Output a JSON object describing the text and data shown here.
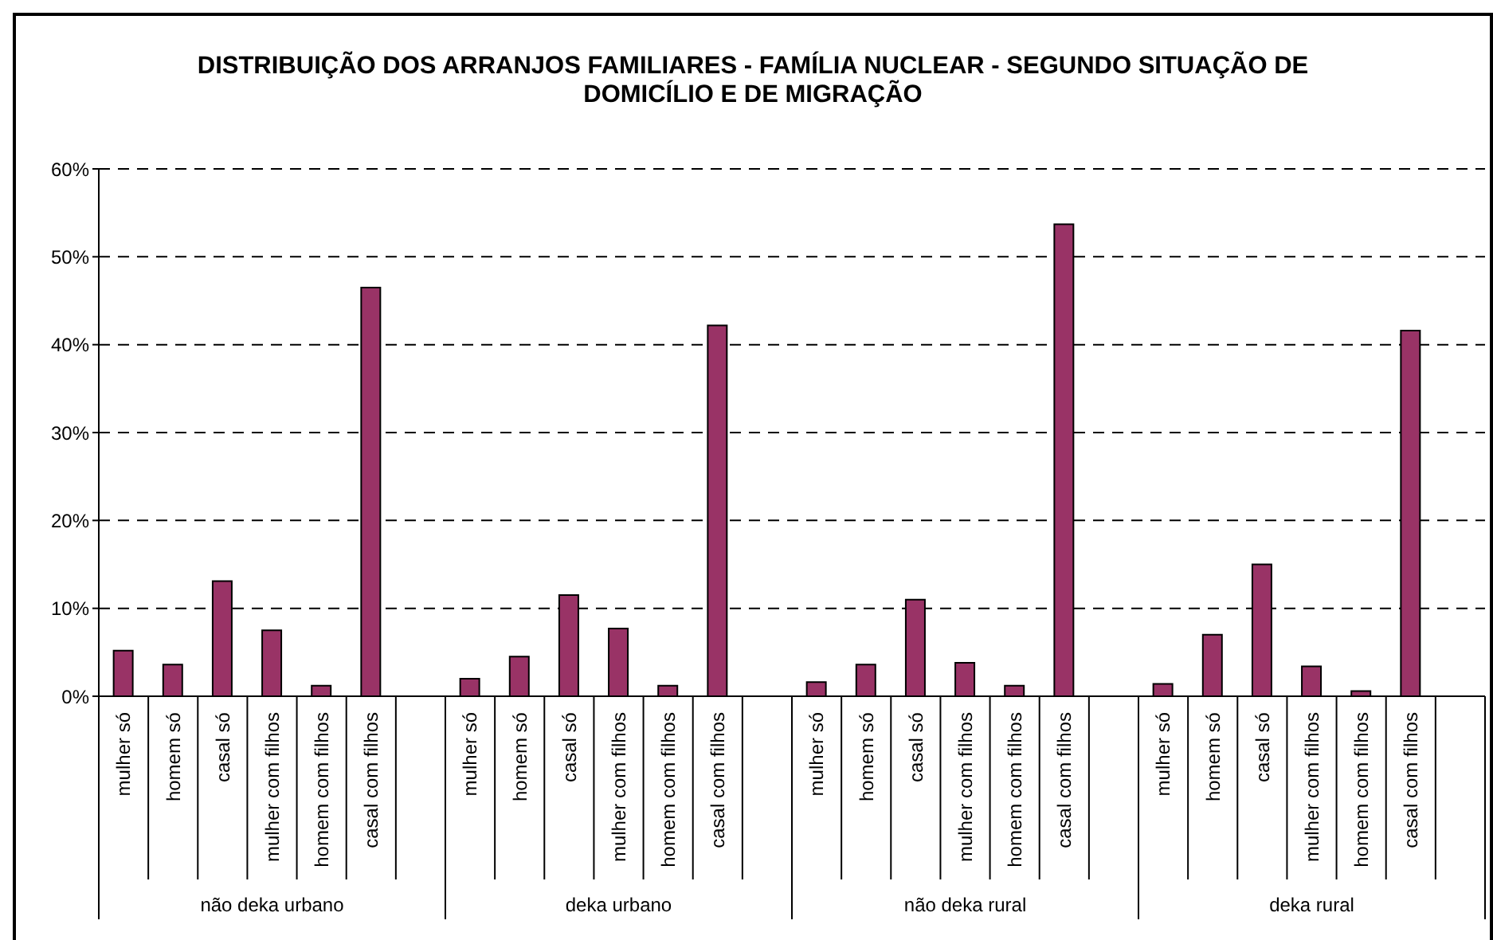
{
  "chart_data": {
    "type": "bar",
    "title": "DISTRIBUIÇÃO DOS ARRANJOS FAMILIARES - FAMÍLIA NUCLEAR - SEGUNDO SITUAÇÃO DE DOMICÍLIO E DE MIGRAÇÃO",
    "categories": [
      "mulher só",
      "homem só",
      "casal só",
      "mulher com filhos",
      "homem com filhos",
      "casal com filhos",
      null,
      "mulher só",
      "homem só",
      "casal só",
      "mulher com filhos",
      "homem com filhos",
      "casal com filhos",
      null,
      "mulher só",
      "homem só",
      "casal só",
      "mulher com filhos",
      "homem com filhos",
      "casal com filhos",
      null,
      "mulher só",
      "homem só",
      "casal só",
      "mulher com filhos",
      "homem com filhos",
      "casal com filhos",
      null
    ],
    "values": [
      5.2,
      3.6,
      13.1,
      7.5,
      1.2,
      46.5,
      null,
      2.0,
      4.5,
      11.5,
      7.7,
      1.2,
      42.2,
      null,
      1.6,
      3.6,
      11.0,
      3.8,
      1.2,
      53.7,
      null,
      1.4,
      7.0,
      15.0,
      3.4,
      0.6,
      41.6,
      null
    ],
    "color": "#993366",
    "ylim": [
      0,
      60
    ],
    "yticks": [
      {
        "value": 0,
        "label": "0%"
      },
      {
        "value": 10,
        "label": "10%"
      },
      {
        "value": 20,
        "label": "20%"
      },
      {
        "value": 30,
        "label": "30%"
      },
      {
        "value": 40,
        "label": "40%"
      },
      {
        "value": 50,
        "label": "50%"
      },
      {
        "value": 60,
        "label": "60%"
      }
    ],
    "grid": "y",
    "annotations": [
      "não deka urbano",
      "deka urbano",
      "não deka rural",
      "deka rural"
    ]
  }
}
